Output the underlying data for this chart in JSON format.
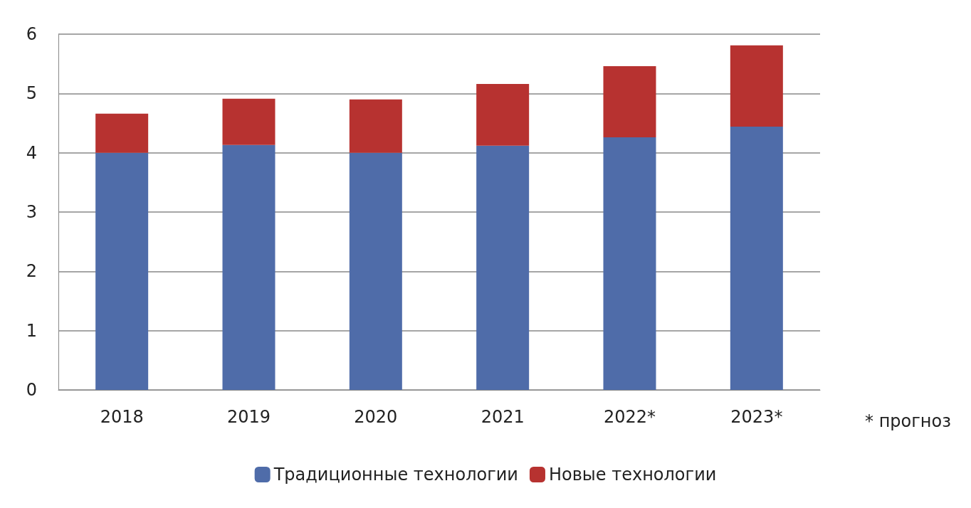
{
  "chart_data": {
    "type": "bar",
    "stacked": true,
    "categories": [
      "2018",
      "2019",
      "2020",
      "2021",
      "2022*",
      "2023*"
    ],
    "series": [
      {
        "name": "Традиционные технологии",
        "color": "#4f6ca9",
        "values": [
          4.0,
          4.13,
          4.0,
          4.12,
          4.26,
          4.44
        ]
      },
      {
        "name": "Новые технологии",
        "color": "#b73230",
        "values": [
          0.66,
          0.78,
          0.9,
          1.04,
          1.2,
          1.37
        ]
      }
    ],
    "ylim": [
      0,
      6
    ],
    "yticks": [
      0,
      1,
      2,
      3,
      4,
      5,
      6
    ],
    "grid": "y",
    "legend": "bottom",
    "annotations": [
      "* прогноз"
    ]
  }
}
